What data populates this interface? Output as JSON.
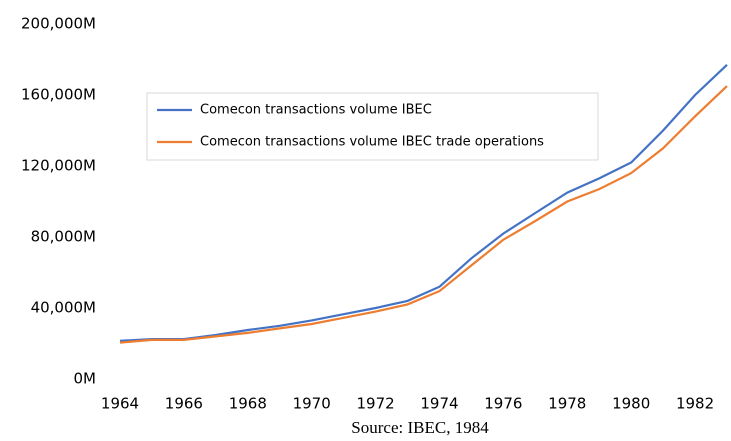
{
  "chart_data": {
    "type": "line",
    "source": "Source: IBEC, 1984",
    "x": [
      1964,
      1965,
      1966,
      1967,
      1968,
      1969,
      1970,
      1971,
      1972,
      1973,
      1974,
      1975,
      1976,
      1977,
      1978,
      1979,
      1980,
      1981,
      1982,
      1983
    ],
    "series": [
      {
        "name": "Comecon transactions volume IBEC",
        "color": "#4472c4",
        "values": [
          21500,
          22500,
          22500,
          24800,
          27600,
          30000,
          33000,
          36500,
          40000,
          44000,
          52000,
          68000,
          82000,
          93500,
          105000,
          113000,
          122000,
          140000,
          160000,
          177000
        ]
      },
      {
        "name": "Comecon transactions volume IBEC trade operations",
        "color": "#ed7d31",
        "values": [
          20500,
          22000,
          22000,
          24000,
          26000,
          28500,
          31000,
          34500,
          38000,
          42000,
          49500,
          64000,
          78500,
          89000,
          100000,
          107000,
          116000,
          130000,
          148000,
          165000
        ]
      }
    ],
    "xlim": [
      1964,
      1983
    ],
    "xticks": [
      1964,
      1966,
      1968,
      1970,
      1972,
      1974,
      1976,
      1978,
      1980,
      1982
    ],
    "ylim": [
      0,
      200000
    ],
    "yticks": [
      {
        "value": 0,
        "label": "0M"
      },
      {
        "value": 40000,
        "label": "40,000M"
      },
      {
        "value": 80000,
        "label": "80,000M"
      },
      {
        "value": 120000,
        "label": "120,000M"
      },
      {
        "value": 160000,
        "label": "160,000M"
      },
      {
        "value": 200000,
        "label": "200,000M"
      }
    ],
    "grid": false,
    "legend": "upper-left"
  }
}
